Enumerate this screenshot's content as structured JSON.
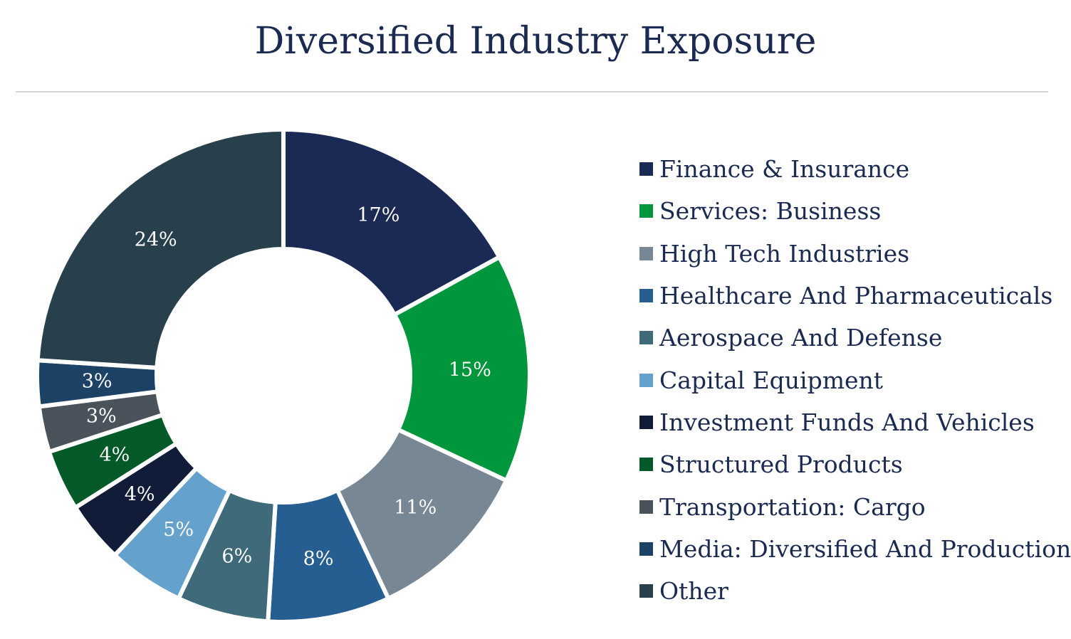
{
  "chart_data": {
    "type": "pie",
    "style": "donut",
    "title": "Diversified Industry Exposure",
    "legend_position": "right",
    "slices": [
      {
        "label": "Finance & Insurance",
        "value": 17,
        "display": "17%",
        "color": "#1b2a55"
      },
      {
        "label": "Services: Business",
        "value": 15,
        "display": "15%",
        "color": "#00963c"
      },
      {
        "label": "High Tech Industries",
        "value": 11,
        "display": "11%",
        "color": "#778793"
      },
      {
        "label": "Healthcare And Pharmaceuticals",
        "value": 8,
        "display": "8%",
        "color": "#265e92"
      },
      {
        "label": "Aerospace And Defense",
        "value": 6,
        "display": "6%",
        "color": "#3e6a7a"
      },
      {
        "label": "Capital Equipment",
        "value": 5,
        "display": "5%",
        "color": "#64a1cc"
      },
      {
        "label": "Investment Funds And Vehicles",
        "value": 4,
        "display": "4%",
        "color": "#111c38"
      },
      {
        "label": "Structured Products",
        "value": 4,
        "display": "4%",
        "color": "#035a28"
      },
      {
        "label": "Transportation: Cargo",
        "value": 3,
        "display": "3%",
        "color": "#4a525c"
      },
      {
        "label": "Media: Diversified And Production",
        "value": 3,
        "display": "3%",
        "color": "#1c4265"
      },
      {
        "label": "Other",
        "value": 24,
        "display": "24%",
        "color": "#283f4c"
      }
    ]
  }
}
